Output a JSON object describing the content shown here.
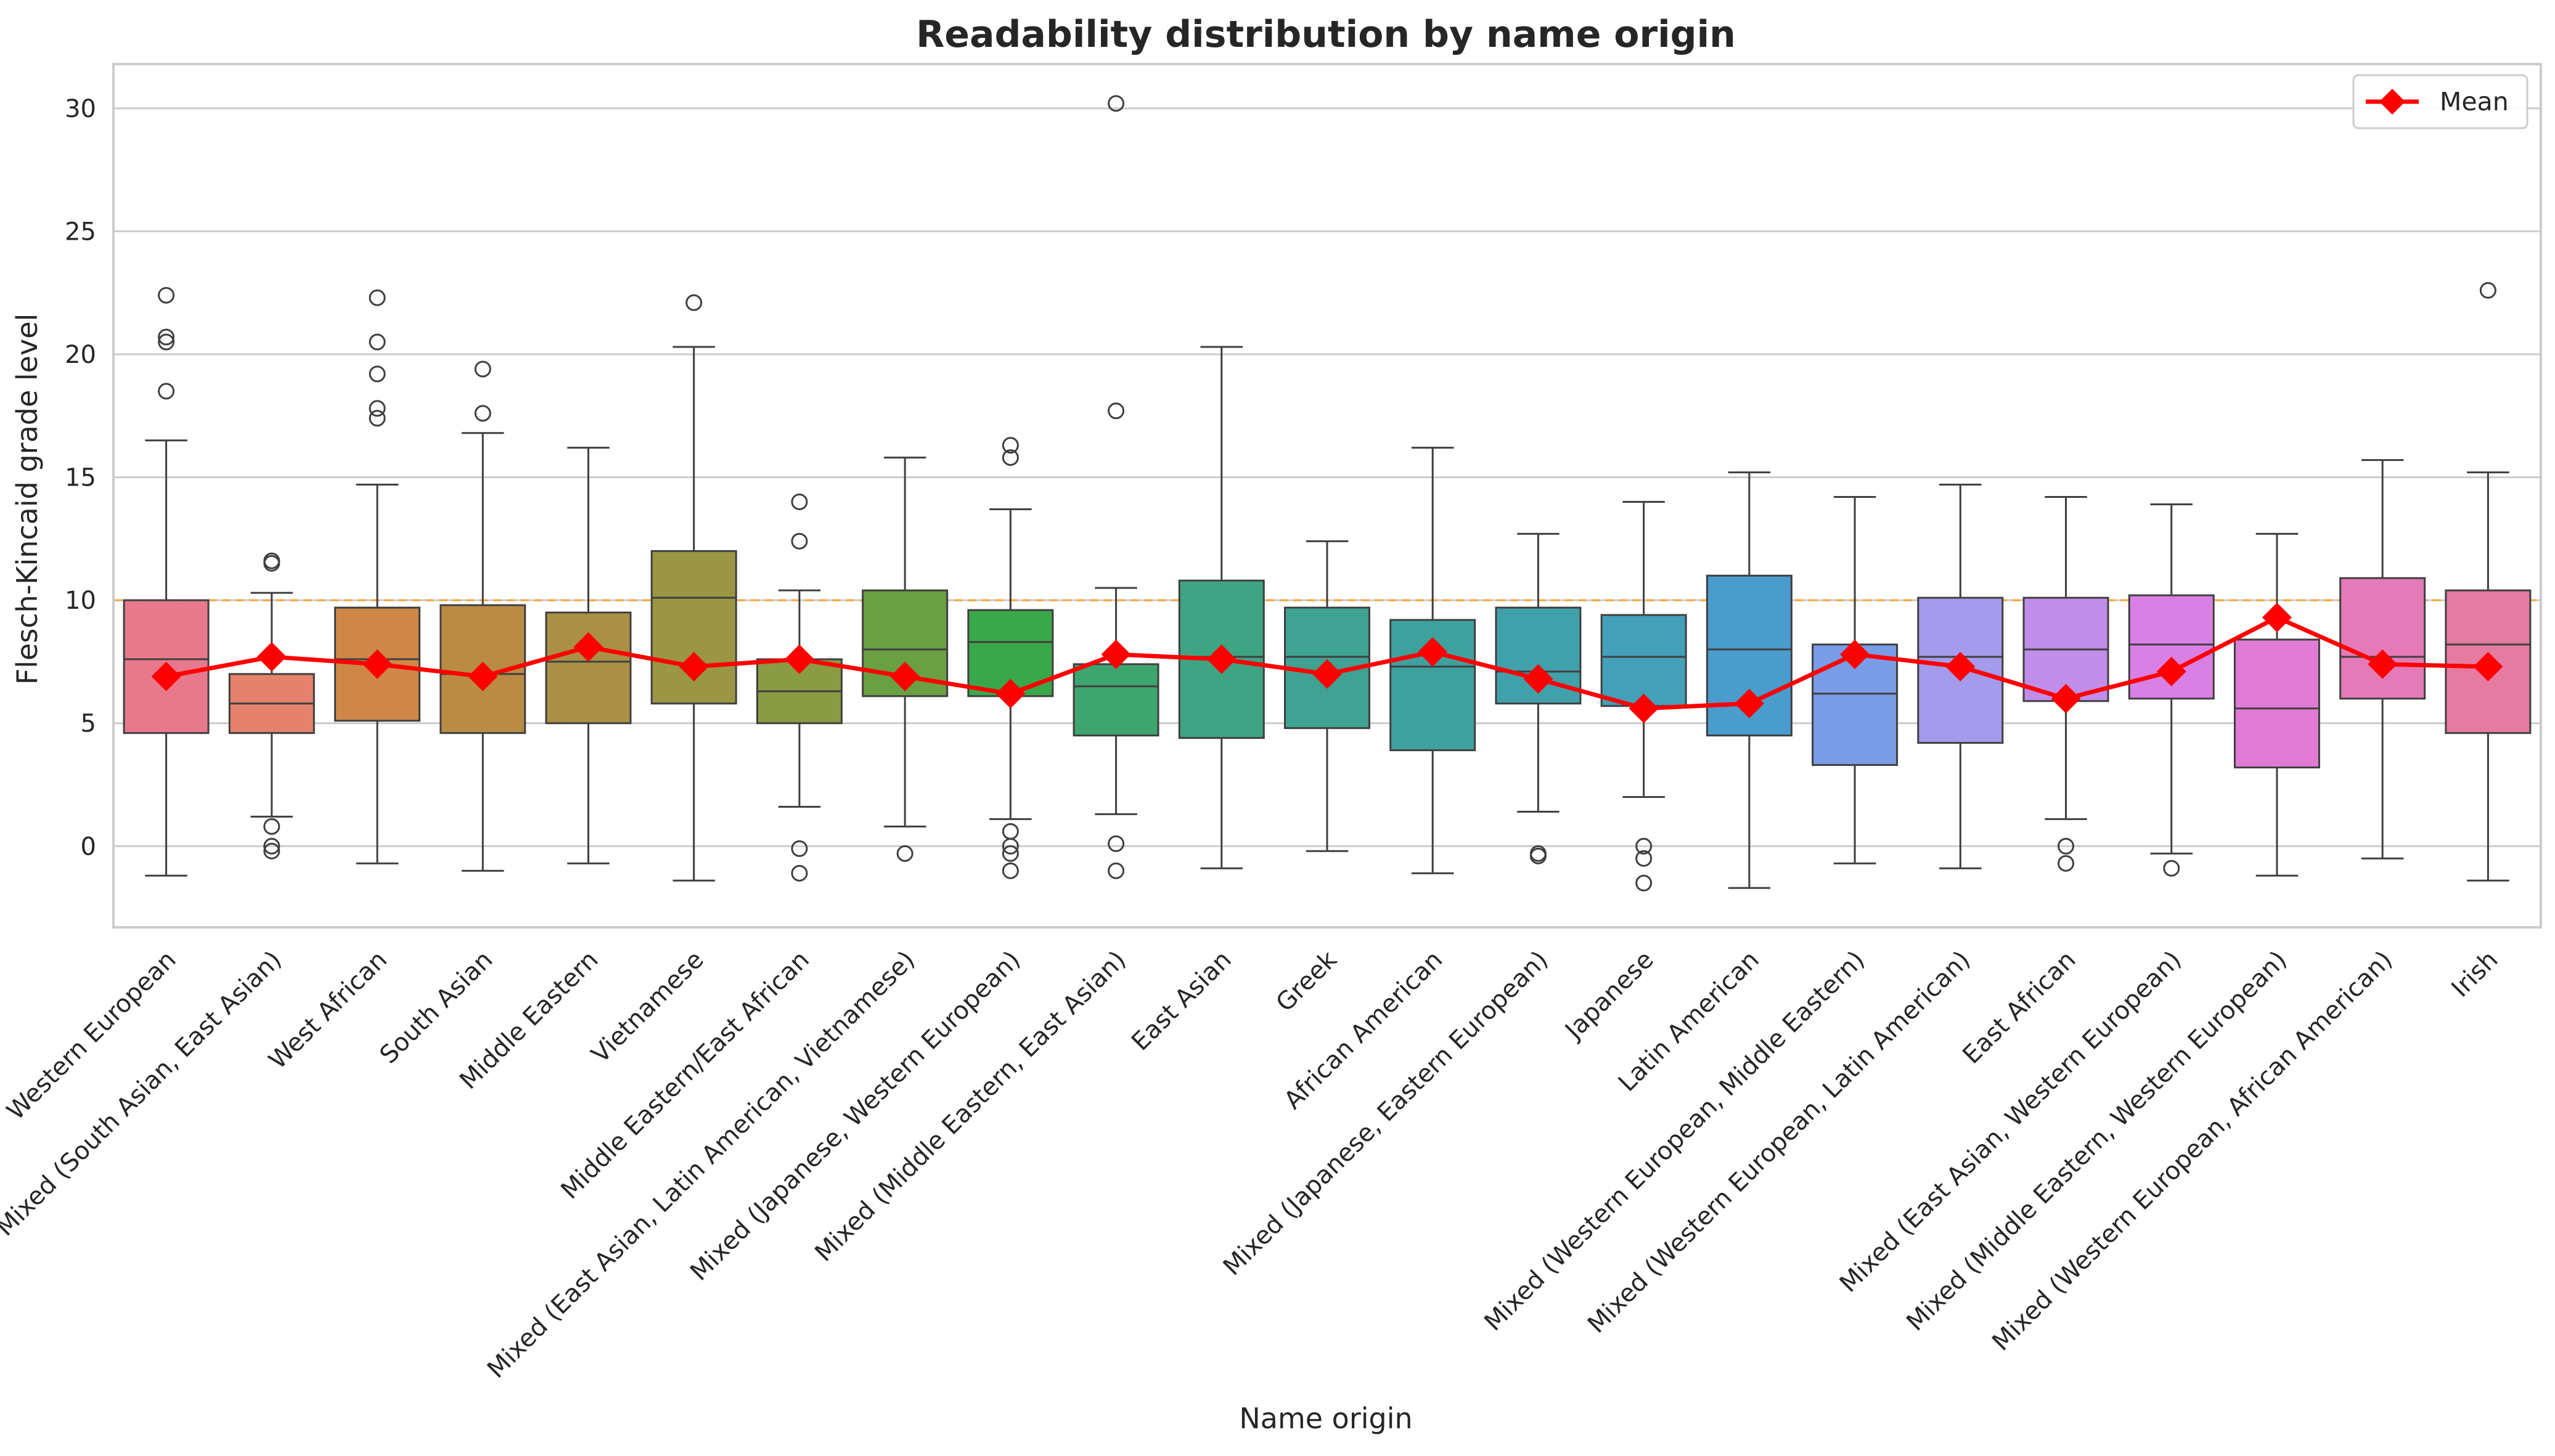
{
  "chart_data": {
    "type": "box",
    "title": "Readability distribution by name origin",
    "xlabel": "Name origin",
    "ylabel": "Flesch-Kincaid grade level",
    "ylim": [
      -3.3,
      31.8
    ],
    "yticks": [
      0,
      5,
      10,
      15,
      20,
      25,
      30
    ],
    "grid": "horizontal",
    "reference_line": {
      "y": 10,
      "color": "#f4a63d",
      "style": "dashed"
    },
    "legend": {
      "position": "top-right",
      "entries": [
        "Mean"
      ]
    },
    "mean_series": {
      "name": "Mean",
      "color": "#ff0000",
      "marker": "diamond"
    },
    "categories": [
      "Western European",
      "Mixed (South Asian, East Asian)",
      "West African",
      "South Asian",
      "Middle Eastern",
      "Vietnamese",
      "Middle Eastern/East African",
      "Mixed (East Asian, Latin American, Vietnamese)",
      "Mixed (Japanese, Western European)",
      "Mixed (Middle Eastern, East Asian)",
      "East Asian",
      "Greek",
      "African American",
      "Mixed (Japanese, Eastern European)",
      "Japanese",
      "Latin American",
      "Mixed (Western European, Middle Eastern)",
      "Mixed (Western European, Latin American)",
      "East African",
      "Mixed (East Asian, Western European)",
      "Mixed (Middle Eastern, Western European)",
      "Mixed (Western European, African American)",
      "Irish"
    ],
    "boxes": [
      {
        "whisker_low": -1.2,
        "q1": 4.6,
        "median": 7.6,
        "q3": 10.0,
        "whisker_high": 16.5,
        "mean": 6.9,
        "outliers": [
          18.5,
          20.5,
          20.7,
          22.4
        ],
        "color": "#e8798d"
      },
      {
        "whisker_low": 1.2,
        "q1": 4.6,
        "median": 5.8,
        "q3": 7.0,
        "whisker_high": 10.3,
        "mean": 7.7,
        "outliers": [
          -0.2,
          0.0,
          0.8,
          11.5,
          11.6
        ],
        "color": "#e5826d"
      },
      {
        "whisker_low": -0.7,
        "q1": 5.1,
        "median": 7.6,
        "q3": 9.7,
        "whisker_high": 14.7,
        "mean": 7.4,
        "outliers": [
          17.4,
          17.8,
          19.2,
          20.5,
          22.3
        ],
        "color": "#cf8748"
      },
      {
        "whisker_low": -1.0,
        "q1": 4.6,
        "median": 7.0,
        "q3": 9.8,
        "whisker_high": 16.8,
        "mean": 6.9,
        "outliers": [
          17.6,
          19.4
        ],
        "color": "#ba8b45"
      },
      {
        "whisker_low": -0.7,
        "q1": 5.0,
        "median": 7.5,
        "q3": 9.5,
        "whisker_high": 16.2,
        "mean": 8.1,
        "outliers": [],
        "color": "#aa9045"
      },
      {
        "whisker_low": -1.4,
        "q1": 5.8,
        "median": 10.1,
        "q3": 12.0,
        "whisker_high": 20.3,
        "mean": 7.3,
        "outliers": [
          22.1
        ],
        "color": "#9a9644"
      },
      {
        "whisker_low": 1.6,
        "q1": 5.0,
        "median": 6.3,
        "q3": 7.6,
        "whisker_high": 10.4,
        "mean": 7.6,
        "outliers": [
          -1.1,
          -0.1,
          12.4,
          14.0
        ],
        "color": "#8a9b44"
      },
      {
        "whisker_low": 0.8,
        "q1": 6.1,
        "median": 8.0,
        "q3": 10.4,
        "whisker_high": 15.8,
        "mean": 6.9,
        "outliers": [
          -0.3
        ],
        "color": "#6a9f44"
      },
      {
        "whisker_low": 1.1,
        "q1": 6.1,
        "median": 8.3,
        "q3": 9.6,
        "whisker_high": 13.7,
        "mean": 6.2,
        "outliers": [
          -1.0,
          -0.3,
          0.0,
          0.6,
          15.8,
          16.3
        ],
        "color": "#3aa84a"
      },
      {
        "whisker_low": 1.3,
        "q1": 4.5,
        "median": 6.5,
        "q3": 7.4,
        "whisker_high": 10.5,
        "mean": 7.8,
        "outliers": [
          -1.0,
          0.1,
          17.7,
          30.2
        ],
        "color": "#3ea56f"
      },
      {
        "whisker_low": -0.9,
        "q1": 4.4,
        "median": 7.7,
        "q3": 10.8,
        "whisker_high": 20.3,
        "mean": 7.6,
        "outliers": [],
        "color": "#3fa483"
      },
      {
        "whisker_low": -0.2,
        "q1": 4.8,
        "median": 7.7,
        "q3": 9.7,
        "whisker_high": 12.4,
        "mean": 7.0,
        "outliers": [],
        "color": "#3fa292"
      },
      {
        "whisker_low": -1.1,
        "q1": 3.9,
        "median": 7.3,
        "q3": 9.2,
        "whisker_high": 16.2,
        "mean": 7.9,
        "outliers": [],
        "color": "#3fa19e"
      },
      {
        "whisker_low": 1.4,
        "q1": 5.8,
        "median": 7.1,
        "q3": 9.7,
        "whisker_high": 12.7,
        "mean": 6.8,
        "outliers": [
          -0.4,
          -0.3
        ],
        "color": "#41a1ab"
      },
      {
        "whisker_low": 2.0,
        "q1": 5.7,
        "median": 7.7,
        "q3": 9.4,
        "whisker_high": 14.0,
        "mean": 5.6,
        "outliers": [
          -1.5,
          -0.5,
          0.0
        ],
        "color": "#43a0b8"
      },
      {
        "whisker_low": -1.7,
        "q1": 4.5,
        "median": 8.0,
        "q3": 11.0,
        "whisker_high": 15.2,
        "mean": 5.8,
        "outliers": [],
        "color": "#4a9ccc"
      },
      {
        "whisker_low": -0.7,
        "q1": 3.3,
        "median": 6.2,
        "q3": 8.2,
        "whisker_high": 14.2,
        "mean": 7.8,
        "outliers": [],
        "color": "#789de6"
      },
      {
        "whisker_low": -0.9,
        "q1": 4.2,
        "median": 7.7,
        "q3": 10.1,
        "whisker_high": 14.7,
        "mean": 7.3,
        "outliers": [],
        "color": "#a49bec"
      },
      {
        "whisker_low": 1.1,
        "q1": 5.9,
        "median": 8.0,
        "q3": 10.1,
        "whisker_high": 14.2,
        "mean": 6.0,
        "outliers": [
          -0.7,
          0.0
        ],
        "color": "#c08ee8"
      },
      {
        "whisker_low": -0.3,
        "q1": 6.0,
        "median": 8.2,
        "q3": 10.2,
        "whisker_high": 13.9,
        "mean": 7.1,
        "outliers": [
          -0.9
        ],
        "color": "#d880e4"
      },
      {
        "whisker_low": -1.2,
        "q1": 3.2,
        "median": 5.6,
        "q3": 8.4,
        "whisker_high": 12.7,
        "mean": 9.3,
        "outliers": [],
        "color": "#e07bd5"
      },
      {
        "whisker_low": -0.5,
        "q1": 6.0,
        "median": 7.7,
        "q3": 10.9,
        "whisker_high": 15.7,
        "mean": 7.4,
        "outliers": [],
        "color": "#e47bb8"
      },
      {
        "whisker_low": -1.4,
        "q1": 4.6,
        "median": 8.2,
        "q3": 10.4,
        "whisker_high": 15.2,
        "mean": 7.3,
        "outliers": [
          22.6
        ],
        "color": "#e67ba2"
      }
    ]
  }
}
